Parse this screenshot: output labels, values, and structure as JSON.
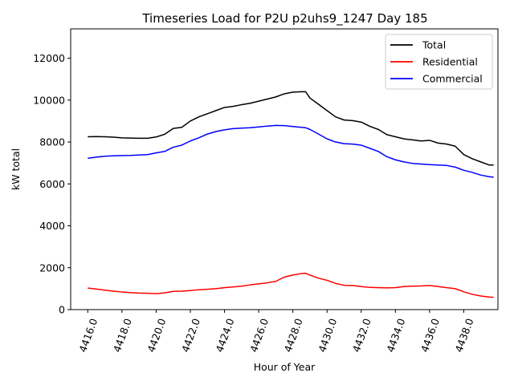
{
  "chart_data": {
    "type": "line",
    "title": "Timeseries Load for P2U p2uhs9_1247  Day 185",
    "xlabel": "Hour of Year",
    "ylabel": "kW total",
    "xlim": [
      4415.0,
      4440.0
    ],
    "ylim": [
      0,
      13400
    ],
    "xticks": [
      4416.0,
      4418.0,
      4420.0,
      4422.0,
      4424.0,
      4426.0,
      4428.0,
      4430.0,
      4432.0,
      4434.0,
      4436.0,
      4438.0
    ],
    "xtick_labels": [
      "4416.0",
      "4418.0",
      "4420.0",
      "4422.0",
      "4424.0",
      "4426.0",
      "4428.0",
      "4430.0",
      "4432.0",
      "4434.0",
      "4436.0",
      "4438.0"
    ],
    "yticks": [
      0,
      2000,
      4000,
      6000,
      8000,
      10000,
      12000
    ],
    "ytick_labels": [
      "0",
      "2000",
      "4000",
      "6000",
      "8000",
      "10000",
      "12000"
    ],
    "grid": false,
    "legend_position": "top-right",
    "x": [
      4416.0,
      4416.5,
      4417.0,
      4417.5,
      4418.0,
      4418.5,
      4419.0,
      4419.5,
      4420.0,
      4420.5,
      4421.0,
      4421.5,
      4422.0,
      4422.5,
      4423.0,
      4423.5,
      4424.0,
      4424.5,
      4425.0,
      4425.5,
      4426.0,
      4426.5,
      4427.0,
      4427.5,
      4428.0,
      4428.5,
      4428.75,
      4429.0,
      4429.5,
      4430.0,
      4430.5,
      4431.0,
      4431.5,
      4432.0,
      4432.5,
      4433.0,
      4433.5,
      4434.0,
      4434.5,
      4435.0,
      4435.5,
      4436.0,
      4436.5,
      4437.0,
      4437.5,
      4438.0,
      4438.5,
      4439.0,
      4439.5,
      4439.75
    ],
    "series": [
      {
        "name": "Total",
        "color": "#000000",
        "values": [
          8250,
          8260,
          8250,
          8230,
          8200,
          8190,
          8180,
          8180,
          8240,
          8370,
          8650,
          8700,
          9000,
          9200,
          9350,
          9500,
          9650,
          9700,
          9780,
          9850,
          9950,
          10050,
          10150,
          10300,
          10380,
          10400,
          10400,
          10100,
          9800,
          9500,
          9200,
          9050,
          9020,
          8950,
          8750,
          8600,
          8350,
          8250,
          8150,
          8100,
          8050,
          8080,
          7950,
          7900,
          7800,
          7400,
          7200,
          7050,
          6900,
          6900
        ]
      },
      {
        "name": "Residential",
        "color": "#ff0000",
        "values": [
          1030,
          980,
          930,
          880,
          840,
          810,
          790,
          780,
          760,
          800,
          870,
          880,
          910,
          950,
          970,
          1000,
          1050,
          1080,
          1120,
          1180,
          1230,
          1280,
          1350,
          1550,
          1650,
          1720,
          1730,
          1650,
          1500,
          1400,
          1250,
          1160,
          1150,
          1100,
          1060,
          1050,
          1040,
          1050,
          1100,
          1120,
          1130,
          1150,
          1100,
          1050,
          1000,
          850,
          730,
          650,
          600,
          590
        ]
      },
      {
        "name": "Commercial",
        "color": "#0000ff",
        "values": [
          7220,
          7280,
          7320,
          7340,
          7350,
          7360,
          7380,
          7400,
          7480,
          7550,
          7750,
          7850,
          8050,
          8200,
          8380,
          8500,
          8580,
          8640,
          8660,
          8680,
          8720,
          8760,
          8790,
          8780,
          8740,
          8700,
          8680,
          8600,
          8380,
          8150,
          8000,
          7920,
          7900,
          7850,
          7700,
          7550,
          7300,
          7150,
          7050,
          6980,
          6950,
          6920,
          6900,
          6880,
          6800,
          6650,
          6550,
          6420,
          6340,
          6320
        ]
      }
    ]
  }
}
